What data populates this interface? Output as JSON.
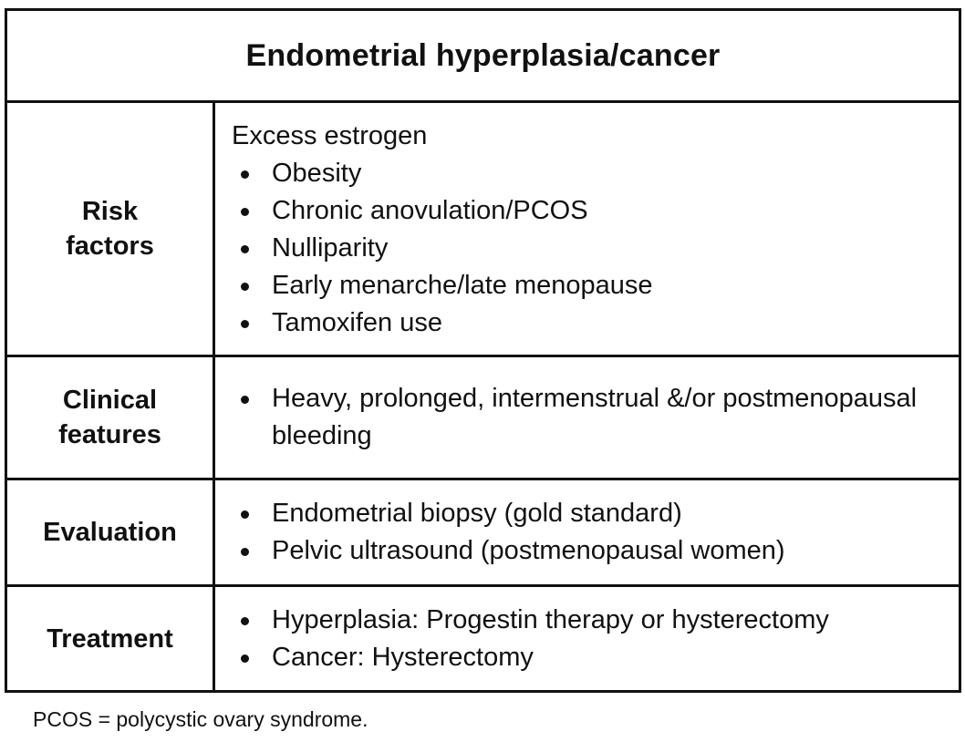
{
  "table": {
    "title": "Endometrial hyperplasia/cancer",
    "rows": [
      {
        "label": "Risk\nfactors",
        "intro": "Excess estrogen",
        "items": [
          "Obesity",
          "Chronic anovulation/PCOS",
          "Nulliparity",
          "Early menarche/late menopause",
          "Tamoxifen use"
        ]
      },
      {
        "label": "Clinical\nfeatures",
        "items": [
          "Heavy, prolonged, intermenstrual &/or postmenopausal bleeding"
        ]
      },
      {
        "label": "Evaluation",
        "items": [
          "Endometrial biopsy (gold standard)",
          "Pelvic ultrasound (postmenopausal women)"
        ]
      },
      {
        "label": "Treatment",
        "items": [
          "Hyperplasia: Progestin therapy or hysterectomy",
          "Cancer: Hysterectomy"
        ]
      }
    ]
  },
  "footnote": "PCOS = polycystic ovary syndrome."
}
